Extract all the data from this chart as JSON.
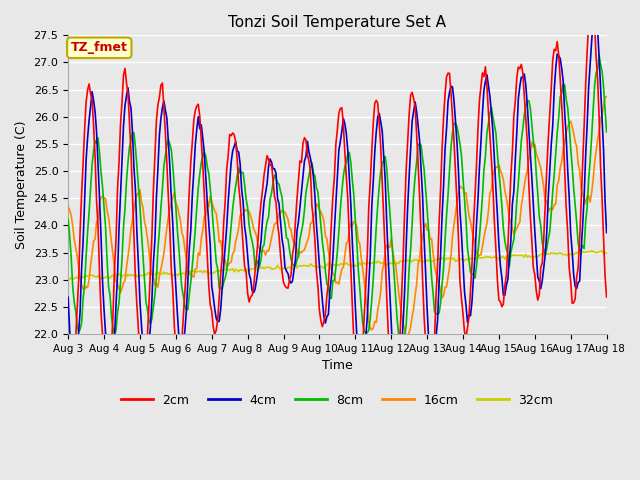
{
  "title": "Tonzi Soil Temperature Set A",
  "xlabel": "Time",
  "ylabel": "Soil Temperature (C)",
  "ylim": [
    22.0,
    27.5
  ],
  "annotation_text": "TZ_fmet",
  "annotation_bg": "#ffffcc",
  "annotation_border": "#bbaa00",
  "annotation_text_color": "#cc0000",
  "bg_color": "#e8e8e8",
  "grid_color": "#ffffff",
  "colors": {
    "2cm": "#ff0000",
    "4cm": "#0000cc",
    "8cm": "#00bb00",
    "16cm": "#ff8800",
    "32cm": "#cccc00"
  },
  "xtick_labels": [
    "Aug 3",
    "Aug 4",
    "Aug 5",
    "Aug 6",
    "Aug 7",
    "Aug 8",
    "Aug 9",
    "Aug 10",
    "Aug 11",
    "Aug 12",
    "Aug 13",
    "Aug 14",
    "Aug 15",
    "Aug 16",
    "Aug 17",
    "Aug 18"
  ],
  "xtick_positions": [
    0,
    24,
    48,
    72,
    96,
    120,
    144,
    168,
    192,
    216,
    240,
    264,
    288,
    312,
    336,
    360
  ]
}
